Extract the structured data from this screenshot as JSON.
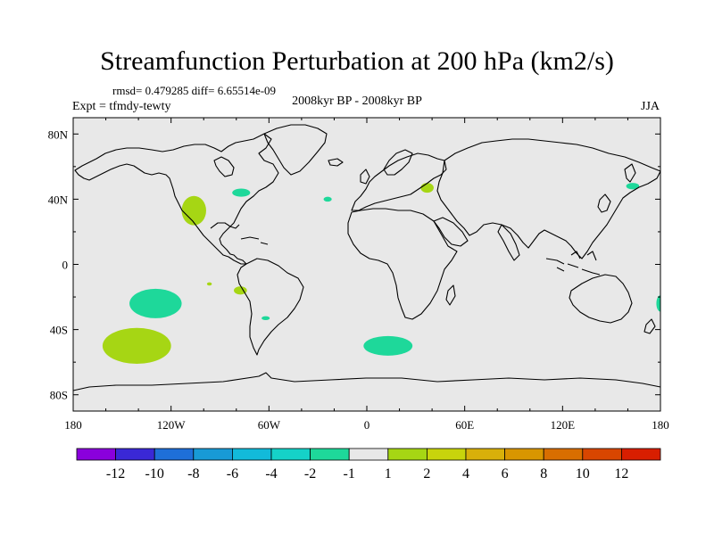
{
  "chart_data": {
    "type": "map",
    "title": "Streamfunction Perturbation at 200 hPa (km2/s)",
    "stats_text": "rmsd= 0.479285 diff= 6.65514e-09",
    "left_label": "Expt = tfmdy-tewty",
    "center_label": "2008kyr BP - 2008kyr BP",
    "right_label": "JJA",
    "lon_range": [
      -180,
      180
    ],
    "lat_range": [
      -90,
      90
    ],
    "x_ticks": [
      {
        "value": -180,
        "label": "180"
      },
      {
        "value": -120,
        "label": "120W"
      },
      {
        "value": -60,
        "label": "60W"
      },
      {
        "value": 0,
        "label": "0"
      },
      {
        "value": 60,
        "label": "60E"
      },
      {
        "value": 120,
        "label": "120E"
      },
      {
        "value": 180,
        "label": "180"
      }
    ],
    "y_ticks": [
      {
        "value": 80,
        "label": "80N"
      },
      {
        "value": 40,
        "label": "40N"
      },
      {
        "value": 0,
        "label": "0"
      },
      {
        "value": -40,
        "label": "40S"
      },
      {
        "value": -80,
        "label": "80S"
      }
    ],
    "background_color": "#e8e8e8",
    "colorbar": {
      "colors": [
        "#8a00dc",
        "#3a28d6",
        "#1e6fd8",
        "#189ad6",
        "#12bada",
        "#15d2c8",
        "#1ed89a",
        "#e8e8e8",
        "#a6d614",
        "#c8d40c",
        "#d8b00a",
        "#d89600",
        "#d86e00",
        "#d84600",
        "#d81e00"
      ],
      "labels": [
        "-12",
        "-10",
        "-8",
        "-6",
        "-4",
        "-2",
        "-1",
        "1",
        "2",
        "4",
        "6",
        "8",
        "10",
        "12"
      ]
    },
    "anomalies": [
      {
        "name": "north-pacific-west",
        "lon": -129.5,
        "lat": -24,
        "rx_deg": 16,
        "ry_deg": 9,
        "value": -1.5
      },
      {
        "name": "south-pacific-east",
        "lon": -141,
        "lat": -50,
        "rx_deg": 21,
        "ry_deg": 11,
        "value": 1.5
      },
      {
        "name": "mexico",
        "lon": -106,
        "lat": 33,
        "rx_deg": 7.5,
        "ry_deg": 9,
        "value": 1.5
      },
      {
        "name": "eastern-us",
        "lon": -77,
        "lat": 44,
        "rx_deg": 5.5,
        "ry_deg": 2.5,
        "value": -1.5
      },
      {
        "name": "mid-atlantic",
        "lon": -24,
        "lat": 40,
        "rx_deg": 2.5,
        "ry_deg": 1.5,
        "value": -1.5
      },
      {
        "name": "black-sea",
        "lon": 37,
        "lat": 47,
        "rx_deg": 4,
        "ry_deg": 3,
        "value": 1.5
      },
      {
        "name": "north-pacific-east",
        "lon": 163,
        "lat": 48,
        "rx_deg": 4,
        "ry_deg": 2,
        "value": -1.5
      },
      {
        "name": "tropical-pacific",
        "lon": -96.5,
        "lat": -12,
        "rx_deg": 1.5,
        "ry_deg": 1,
        "value": 1.5
      },
      {
        "name": "peru",
        "lon": -77.5,
        "lat": -16,
        "rx_deg": 4,
        "ry_deg": 2.5,
        "value": 1.5
      },
      {
        "name": "south-atlantic-west",
        "lon": -62,
        "lat": -33,
        "rx_deg": 2.5,
        "ry_deg": 1.2,
        "value": -1.5
      },
      {
        "name": "south-indian-atlantic",
        "lon": 13,
        "lat": -50,
        "rx_deg": 15,
        "ry_deg": 6,
        "value": -1.5
      },
      {
        "name": "dateline-edge",
        "lon": 180,
        "lat": -24,
        "rx_deg": 2.5,
        "ry_deg": 5,
        "value": -1.5
      }
    ]
  }
}
